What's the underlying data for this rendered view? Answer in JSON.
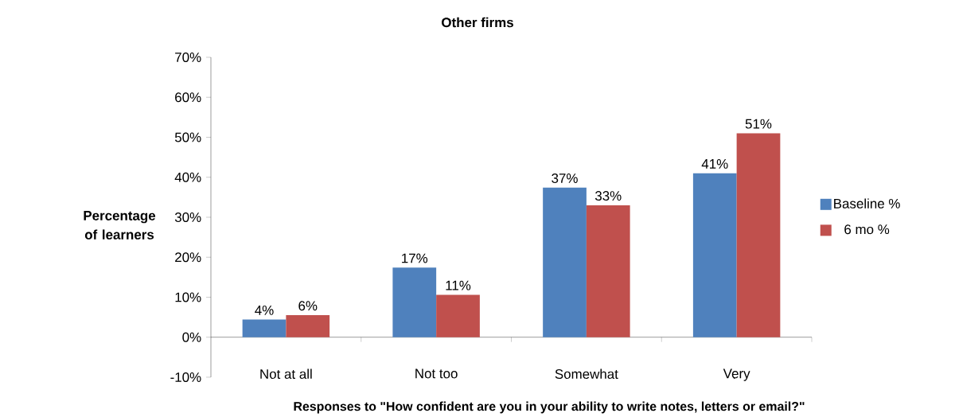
{
  "chart_data": {
    "type": "bar",
    "title": "Other firms",
    "xlabel": "Responses to \"How confident are you in your ability to write notes, letters or email?\"",
    "ylabel": "Percentage of learners",
    "categories": [
      "Not at all",
      "Not too",
      "Somewhat",
      "Very"
    ],
    "series": [
      {
        "name": "Baseline %",
        "color": "#4f81bd",
        "values": [
          4.4,
          17.4,
          37.4,
          41.0
        ],
        "value_labels": [
          "4%",
          "17%",
          "37%",
          "41%"
        ]
      },
      {
        "name": "6 mo %",
        "color": "#c0504d",
        "values": [
          5.5,
          10.6,
          33.0,
          51.0
        ],
        "value_labels": [
          "6%",
          "11%",
          "33%",
          "51%"
        ]
      }
    ],
    "ylim": [
      -10,
      70
    ],
    "yticks": [
      {
        "value": -10,
        "label": "-10%"
      },
      {
        "value": 0,
        "label": "0%"
      },
      {
        "value": 10,
        "label": "10%"
      },
      {
        "value": 20,
        "label": "20%"
      },
      {
        "value": 30,
        "label": "30%"
      },
      {
        "value": 40,
        "label": "40%"
      },
      {
        "value": 50,
        "label": "50%"
      },
      {
        "value": 60,
        "label": "60%"
      },
      {
        "value": 70,
        "label": "70%"
      }
    ],
    "grid": false,
    "legend": "right"
  }
}
